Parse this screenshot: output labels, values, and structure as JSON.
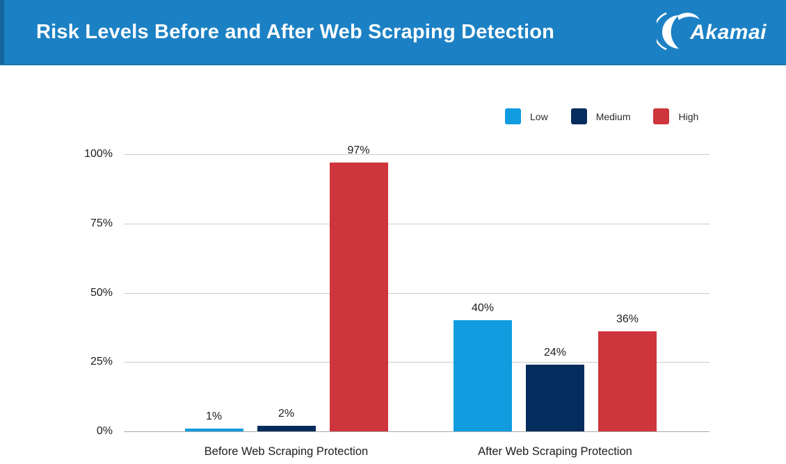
{
  "header": {
    "title": "Risk Levels Before and After Web Scraping Detection",
    "logo_text": "Akamai",
    "background": "#1c81c4",
    "accent_strip": "#15669e"
  },
  "legend": {
    "position": "top-right",
    "items": [
      {
        "label": "Low",
        "color": "#119cdf"
      },
      {
        "label": "Medium",
        "color": "#042c5c"
      },
      {
        "label": "High",
        "color": "#ce353c"
      }
    ]
  },
  "chart_data": {
    "type": "bar",
    "title": "Risk Levels Before and After Web Scraping Detection",
    "categories": [
      "Before Web Scraping Protection",
      "After Web Scraping Protection"
    ],
    "series": [
      {
        "name": "Low",
        "color": "#119cdf",
        "values": [
          1,
          40
        ]
      },
      {
        "name": "Medium",
        "color": "#042c5c",
        "values": [
          2,
          24
        ]
      },
      {
        "name": "High",
        "color": "#ce353c",
        "values": [
          97,
          36
        ]
      }
    ],
    "unit": "%",
    "yticks": [
      "0%",
      "25%",
      "50%",
      "75%",
      "100%"
    ],
    "ylim": [
      0,
      100
    ],
    "grid": true,
    "legend_position": "top-right",
    "data_labels": true
  }
}
